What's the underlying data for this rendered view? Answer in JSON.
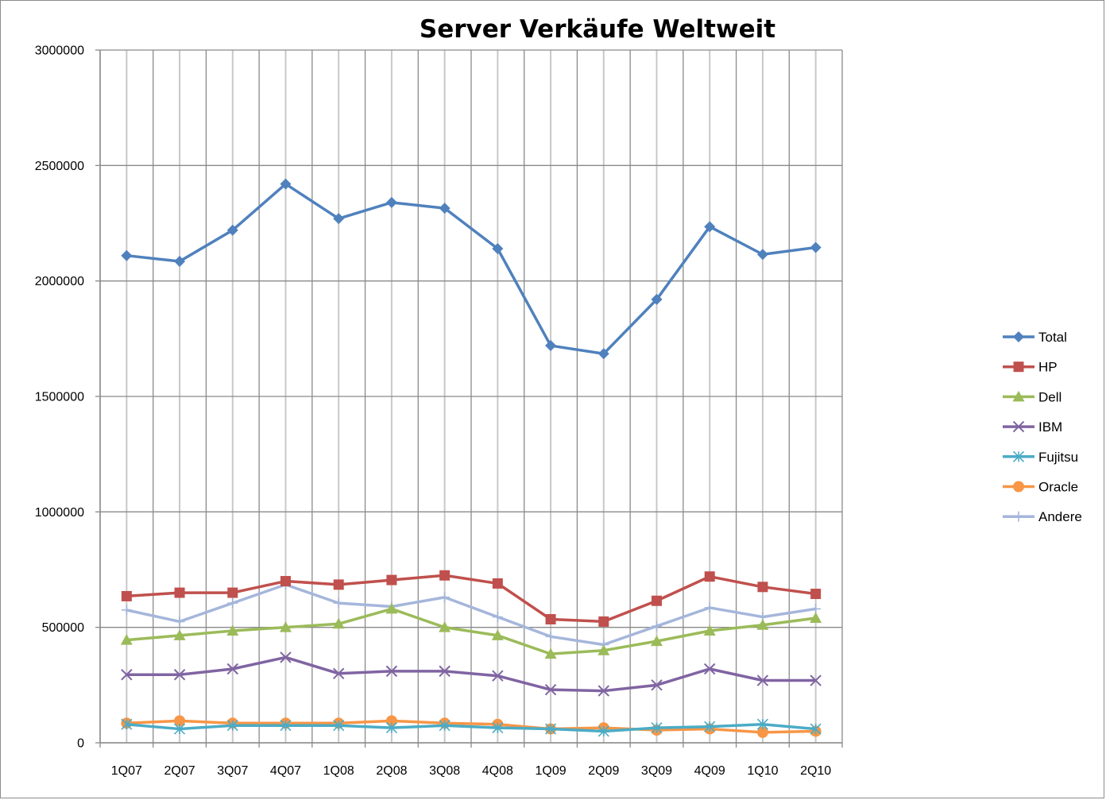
{
  "chart_data": {
    "type": "line",
    "title": "Server Verkäufe Weltweit",
    "xlabel": "",
    "ylabel": "",
    "categories": [
      "1Q07",
      "2Q07",
      "3Q07",
      "4Q07",
      "1Q08",
      "2Q08",
      "3Q08",
      "4Q08",
      "1Q09",
      "2Q09",
      "3Q09",
      "4Q09",
      "1Q10",
      "2Q10"
    ],
    "ylim": [
      0,
      3000000
    ],
    "yticks": [
      "0",
      "500000",
      "1000000",
      "1500000",
      "2000000",
      "2500000",
      "3000000"
    ],
    "ytick_values": [
      0,
      500000,
      1000000,
      1500000,
      2000000,
      2500000,
      3000000
    ],
    "grid": true,
    "legend_position": "right",
    "series": [
      {
        "name": "Total",
        "color": "#4f81bd",
        "marker": "diamond",
        "values": [
          2110000,
          2085000,
          2220000,
          2420000,
          2270000,
          2340000,
          2315000,
          2140000,
          1720000,
          1685000,
          1920000,
          2235000,
          2115000,
          2145000
        ]
      },
      {
        "name": "HP",
        "color": "#c0504d",
        "marker": "square",
        "values": [
          635000,
          650000,
          650000,
          700000,
          685000,
          705000,
          725000,
          690000,
          535000,
          525000,
          615000,
          720000,
          675000,
          645000
        ]
      },
      {
        "name": "Dell",
        "color": "#9bbb59",
        "marker": "triangle",
        "values": [
          445000,
          465000,
          485000,
          500000,
          515000,
          580000,
          500000,
          465000,
          385000,
          400000,
          440000,
          485000,
          510000,
          540000
        ]
      },
      {
        "name": "IBM",
        "color": "#8064a2",
        "marker": "x",
        "values": [
          295000,
          295000,
          320000,
          370000,
          300000,
          310000,
          310000,
          290000,
          230000,
          225000,
          250000,
          320000,
          270000,
          270000
        ]
      },
      {
        "name": "Fujitsu",
        "color": "#4bacc6",
        "marker": "star",
        "values": [
          80000,
          60000,
          75000,
          75000,
          75000,
          65000,
          75000,
          65000,
          60000,
          50000,
          65000,
          70000,
          80000,
          60000
        ]
      },
      {
        "name": "Oracle",
        "color": "#f79646",
        "marker": "circle",
        "values": [
          85000,
          95000,
          85000,
          85000,
          85000,
          95000,
          85000,
          80000,
          60000,
          65000,
          55000,
          60000,
          45000,
          50000
        ]
      },
      {
        "name": "Andere",
        "color": "#a5b6db",
        "marker": "plus",
        "values": [
          575000,
          525000,
          605000,
          685000,
          605000,
          590000,
          630000,
          545000,
          460000,
          425000,
          505000,
          585000,
          545000,
          580000
        ]
      }
    ]
  }
}
